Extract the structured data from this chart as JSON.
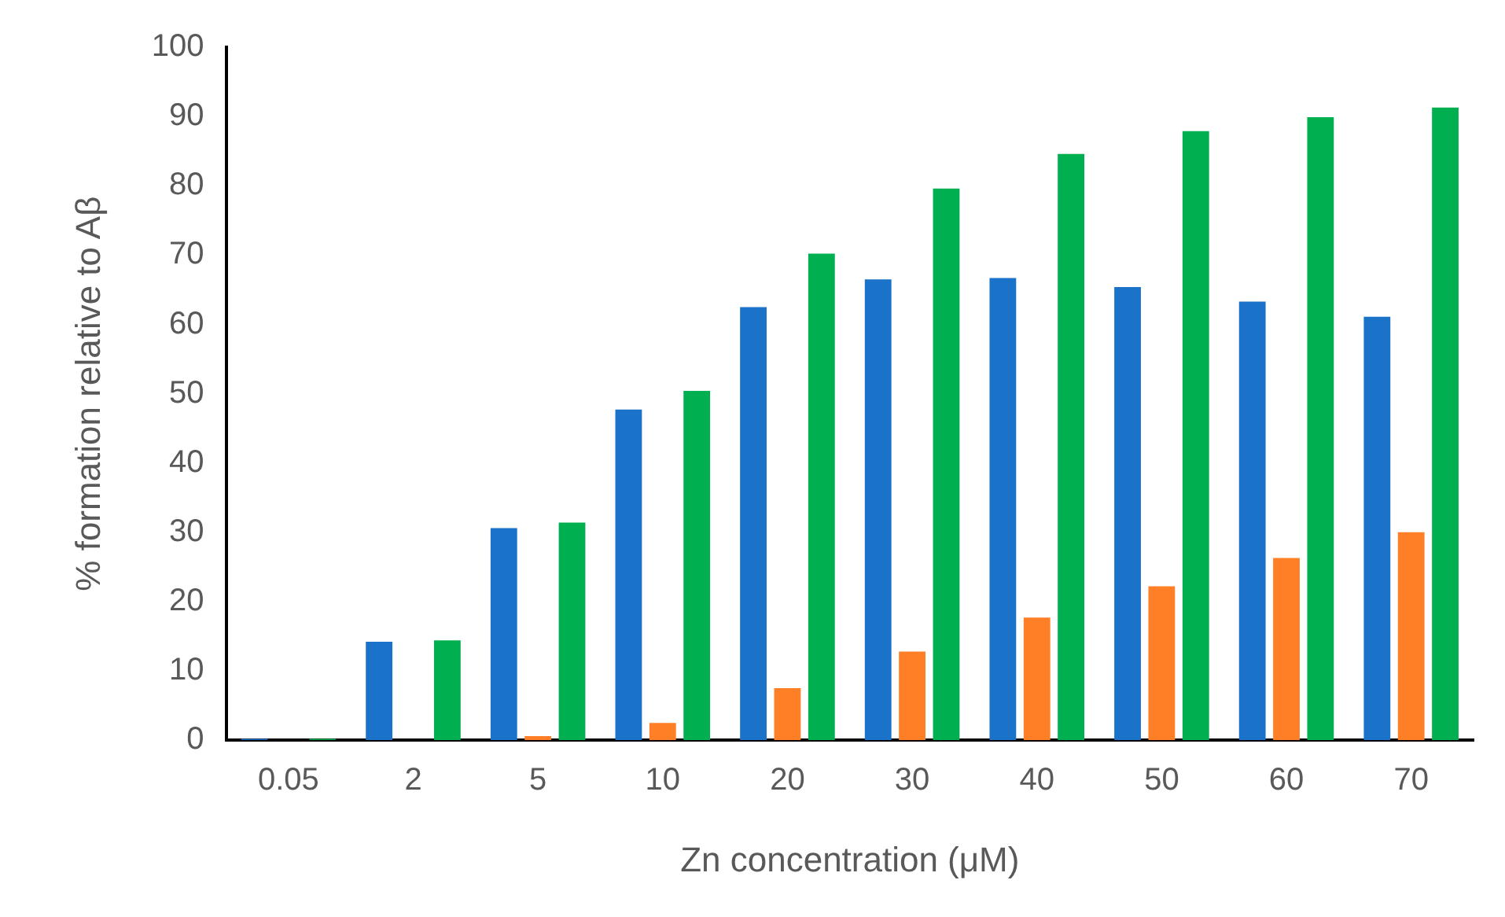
{
  "chart_data": {
    "type": "bar",
    "xlabel": "Zn concentration (μM)",
    "ylabel": "% formation relative to Aβ",
    "categories": [
      "0.05",
      "2",
      "5",
      "10",
      "20",
      "30",
      "40",
      "50",
      "60",
      "70"
    ],
    "series": [
      {
        "color": "#1a73c8",
        "values": [
          0.2,
          14.2,
          30.6,
          47.7,
          62.5,
          66.5,
          66.7,
          65.4,
          63.3,
          61.1
        ]
      },
      {
        "color": "#ff7f27",
        "values": [
          0,
          0,
          0.6,
          2.5,
          7.5,
          12.8,
          17.7,
          22.2,
          26.3,
          30.0
        ]
      },
      {
        "color": "#00b050",
        "values": [
          0.2,
          14.4,
          31.4,
          50.4,
          70.2,
          79.6,
          84.6,
          87.9,
          89.9,
          91.3
        ]
      }
    ],
    "ylim": [
      0,
      100
    ],
    "yticks": [
      0,
      10,
      20,
      30,
      40,
      50,
      60,
      70,
      80,
      90,
      100
    ],
    "grid": false,
    "legend": false
  }
}
